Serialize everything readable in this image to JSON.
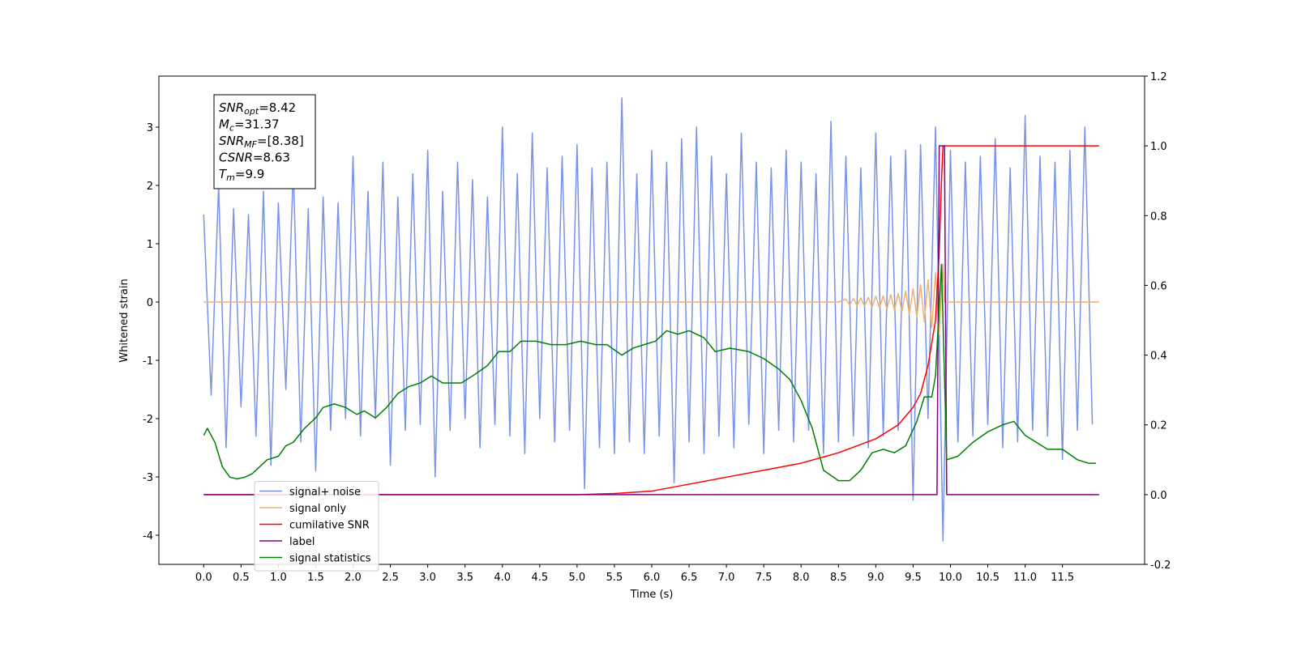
{
  "chart_data": {
    "type": "line",
    "xlabel": "Time (s)",
    "ylabel": "Whitened strain",
    "xlim": [
      -0.6,
      12.6
    ],
    "ylim": [
      -4.5,
      3.875
    ],
    "y2lim": [
      -0.2,
      1.2
    ],
    "xticks": [
      {
        "value": 0,
        "label": "0.0"
      },
      0.5,
      {
        "value": 1,
        "label": "1.0"
      },
      1.5,
      {
        "value": 2,
        "label": "2.0"
      },
      2.5,
      {
        "value": 3,
        "label": "3.0"
      },
      3.5,
      {
        "value": 4,
        "label": "4.0"
      },
      4.5,
      {
        "value": 5,
        "label": "5.0"
      },
      5.5,
      {
        "value": 6,
        "label": "6.0"
      },
      6.5,
      {
        "value": 7,
        "label": "7.0"
      },
      7.5,
      {
        "value": 8,
        "label": "8.0"
      },
      8.5,
      {
        "value": 9,
        "label": "9.0"
      },
      9.5,
      {
        "value": 10,
        "label": "10.0"
      },
      10.5,
      {
        "value": 11,
        "label": "11.0"
      },
      11.5
    ],
    "yticks": [
      -4,
      -3,
      -2,
      -1,
      0,
      1,
      2,
      3
    ],
    "y2ticks": [
      -0.2,
      {
        "value": 0,
        "label": "0.0"
      },
      0.2,
      0.4,
      0.6,
      0.8,
      {
        "value": 1,
        "label": "1.0"
      },
      1.2
    ],
    "annotation": [
      {
        "base": "SNR",
        "sub": "opt",
        "rest": "=8.42"
      },
      {
        "base": "M",
        "sub": "c",
        "rest": "=31.37"
      },
      {
        "base": "SNR",
        "sub": "MF",
        "rest": "=[8.38]"
      },
      {
        "base": "CSNR",
        "sub": null,
        "rest": "=8.63"
      },
      {
        "base": "T",
        "sub": "m",
        "rest": "=9.9"
      }
    ],
    "legend": "lower left",
    "series": [
      {
        "name": "signal+ noise",
        "color": "#7893e8",
        "axis": "y",
        "x": [
          0,
          0.1,
          0.2,
          0.3,
          0.4,
          0.5,
          0.6,
          0.7,
          0.8,
          0.9,
          1,
          1.1,
          1.2,
          1.3,
          1.4,
          1.5,
          1.6,
          1.7,
          1.8,
          1.9,
          2,
          2.1,
          2.2,
          2.3,
          2.4,
          2.5,
          2.6,
          2.7,
          2.8,
          2.9,
          3,
          3.1,
          3.2,
          3.3,
          3.4,
          3.5,
          3.6,
          3.7,
          3.8,
          3.9,
          4,
          4.1,
          4.2,
          4.3,
          4.4,
          4.5,
          4.6,
          4.7,
          4.8,
          4.9,
          5,
          5.1,
          5.2,
          5.3,
          5.4,
          5.5,
          5.6,
          5.7,
          5.8,
          5.9,
          6,
          6.1,
          6.2,
          6.3,
          6.4,
          6.5,
          6.6,
          6.7,
          6.8,
          6.9,
          7,
          7.1,
          7.2,
          7.3,
          7.4,
          7.5,
          7.6,
          7.7,
          7.8,
          7.9,
          8,
          8.1,
          8.2,
          8.3,
          8.4,
          8.5,
          8.6,
          8.7,
          8.8,
          8.9,
          9,
          9.1,
          9.2,
          9.3,
          9.4,
          9.5,
          9.6,
          9.7,
          9.8,
          9.9,
          10,
          10.1,
          10.2,
          10.3,
          10.4,
          10.5,
          10.6,
          10.7,
          10.8,
          10.9,
          11,
          11.1,
          11.2,
          11.3,
          11.4,
          11.5,
          11.6,
          11.7,
          11.8,
          11.9
        ],
        "values": [
          1.5,
          -1.6,
          2.0,
          -2.5,
          1.6,
          -1.8,
          1.5,
          -2.3,
          1.9,
          -2.8,
          1.7,
          -1.5,
          2.3,
          -2.4,
          1.6,
          -2.9,
          1.8,
          -2.2,
          1.7,
          -2.0,
          2.5,
          -2.3,
          1.9,
          -2.0,
          2.4,
          -2.8,
          1.8,
          -2.2,
          2.2,
          -2.1,
          2.6,
          -3.0,
          1.9,
          -2.2,
          2.4,
          -2.0,
          2.1,
          -2.5,
          1.8,
          -2.1,
          3.0,
          -2.3,
          2.2,
          -2.6,
          2.9,
          -2.0,
          2.3,
          -2.4,
          2.5,
          -2.2,
          2.7,
          -3.2,
          2.3,
          -2.5,
          2.4,
          -2.6,
          3.5,
          -2.4,
          2.2,
          -2.6,
          2.6,
          -2.3,
          2.4,
          -3.1,
          2.8,
          -2.4,
          3.0,
          -2.6,
          2.5,
          -2.3,
          2.2,
          -2.5,
          2.9,
          -2.1,
          2.4,
          -2.6,
          2.3,
          -2.2,
          2.6,
          -2.4,
          2.4,
          -2.2,
          2.2,
          -2.6,
          3.1,
          -2.4,
          2.5,
          -2.3,
          2.3,
          -2.5,
          2.9,
          -2.3,
          2.5,
          -2.2,
          2.6,
          -3.4,
          2.7,
          -2.0,
          3.0,
          -4.1,
          2.6,
          -2.4,
          2.4,
          -2.3,
          2.5,
          -2.1,
          2.8,
          -2.5,
          2.3,
          -2.4,
          3.2,
          -2.2,
          2.5,
          -2.3,
          2.4,
          -2.7,
          2.6,
          -2.2,
          3.0,
          -2.1
        ]
      },
      {
        "name": "signal only",
        "color": "#f0b070",
        "axis": "y",
        "x": [
          0,
          8.5,
          8.6,
          8.65,
          8.7,
          8.75,
          8.8,
          8.85,
          8.9,
          8.95,
          9,
          9.05,
          9.1,
          9.15,
          9.2,
          9.25,
          9.3,
          9.35,
          9.4,
          9.45,
          9.5,
          9.55,
          9.6,
          9.65,
          9.7,
          9.75,
          9.8,
          9.85,
          9.9,
          9.92,
          11.99
        ],
        "values": [
          0,
          0,
          0.05,
          -0.05,
          0.06,
          -0.06,
          0.07,
          -0.07,
          0.08,
          -0.09,
          0.1,
          -0.1,
          0.11,
          -0.12,
          0.13,
          -0.14,
          0.15,
          -0.17,
          0.19,
          -0.21,
          0.23,
          -0.26,
          0.3,
          -0.34,
          0.38,
          -0.44,
          0.5,
          -0.56,
          0.65,
          0,
          0
        ]
      },
      {
        "name": "cumilative SNR",
        "color": "#ff0000",
        "axis": "y2",
        "x": [
          0,
          5,
          5.5,
          6,
          6.5,
          7,
          7.5,
          8,
          8.5,
          9,
          9.3,
          9.5,
          9.6,
          9.7,
          9.8,
          9.85,
          9.88,
          9.9,
          11.99
        ],
        "values": [
          0,
          0,
          0.003,
          0.01,
          0.03,
          0.05,
          0.07,
          0.09,
          0.12,
          0.16,
          0.2,
          0.25,
          0.29,
          0.37,
          0.5,
          0.7,
          0.9,
          1,
          1
        ]
      },
      {
        "name": "label",
        "color": "#800080",
        "axis": "y2",
        "x": [
          0,
          9.82,
          9.85,
          9.92,
          9.95,
          11.99
        ],
        "values": [
          0,
          0,
          1,
          1,
          0,
          0
        ]
      },
      {
        "name": "signal statistics",
        "color": "#008000",
        "axis": "y2",
        "x": [
          0,
          0.05,
          0.15,
          0.25,
          0.35,
          0.45,
          0.55,
          0.65,
          0.75,
          0.85,
          1,
          1.1,
          1.2,
          1.35,
          1.5,
          1.6,
          1.75,
          1.9,
          2.05,
          2.15,
          2.3,
          2.45,
          2.6,
          2.75,
          2.9,
          3.05,
          3.2,
          3.45,
          3.6,
          3.8,
          3.95,
          4.1,
          4.25,
          4.45,
          4.65,
          4.85,
          5.05,
          5.25,
          5.4,
          5.6,
          5.75,
          5.9,
          6.05,
          6.2,
          6.35,
          6.5,
          6.7,
          6.85,
          7.05,
          7.3,
          7.5,
          7.7,
          7.85,
          8,
          8.15,
          8.3,
          8.5,
          8.65,
          8.8,
          8.95,
          9.1,
          9.25,
          9.4,
          9.55,
          9.65,
          9.75,
          9.8,
          9.88,
          9.95,
          10.1,
          10.3,
          10.5,
          10.7,
          10.85,
          11,
          11.15,
          11.3,
          11.5,
          11.7,
          11.85,
          11.95
        ],
        "values": [
          0.17,
          0.19,
          0.15,
          0.08,
          0.05,
          0.045,
          0.05,
          0.06,
          0.08,
          0.1,
          0.11,
          0.14,
          0.15,
          0.19,
          0.22,
          0.25,
          0.26,
          0.25,
          0.23,
          0.24,
          0.22,
          0.25,
          0.29,
          0.31,
          0.32,
          0.34,
          0.32,
          0.32,
          0.34,
          0.37,
          0.41,
          0.41,
          0.44,
          0.44,
          0.43,
          0.43,
          0.44,
          0.43,
          0.43,
          0.4,
          0.42,
          0.43,
          0.44,
          0.47,
          0.46,
          0.47,
          0.45,
          0.41,
          0.42,
          0.41,
          0.39,
          0.36,
          0.33,
          0.27,
          0.19,
          0.07,
          0.04,
          0.04,
          0.07,
          0.12,
          0.13,
          0.12,
          0.14,
          0.21,
          0.28,
          0.28,
          0.34,
          0.66,
          0.1,
          0.11,
          0.15,
          0.18,
          0.2,
          0.21,
          0.17,
          0.15,
          0.13,
          0.13,
          0.1,
          0.09,
          0.09
        ]
      }
    ]
  }
}
